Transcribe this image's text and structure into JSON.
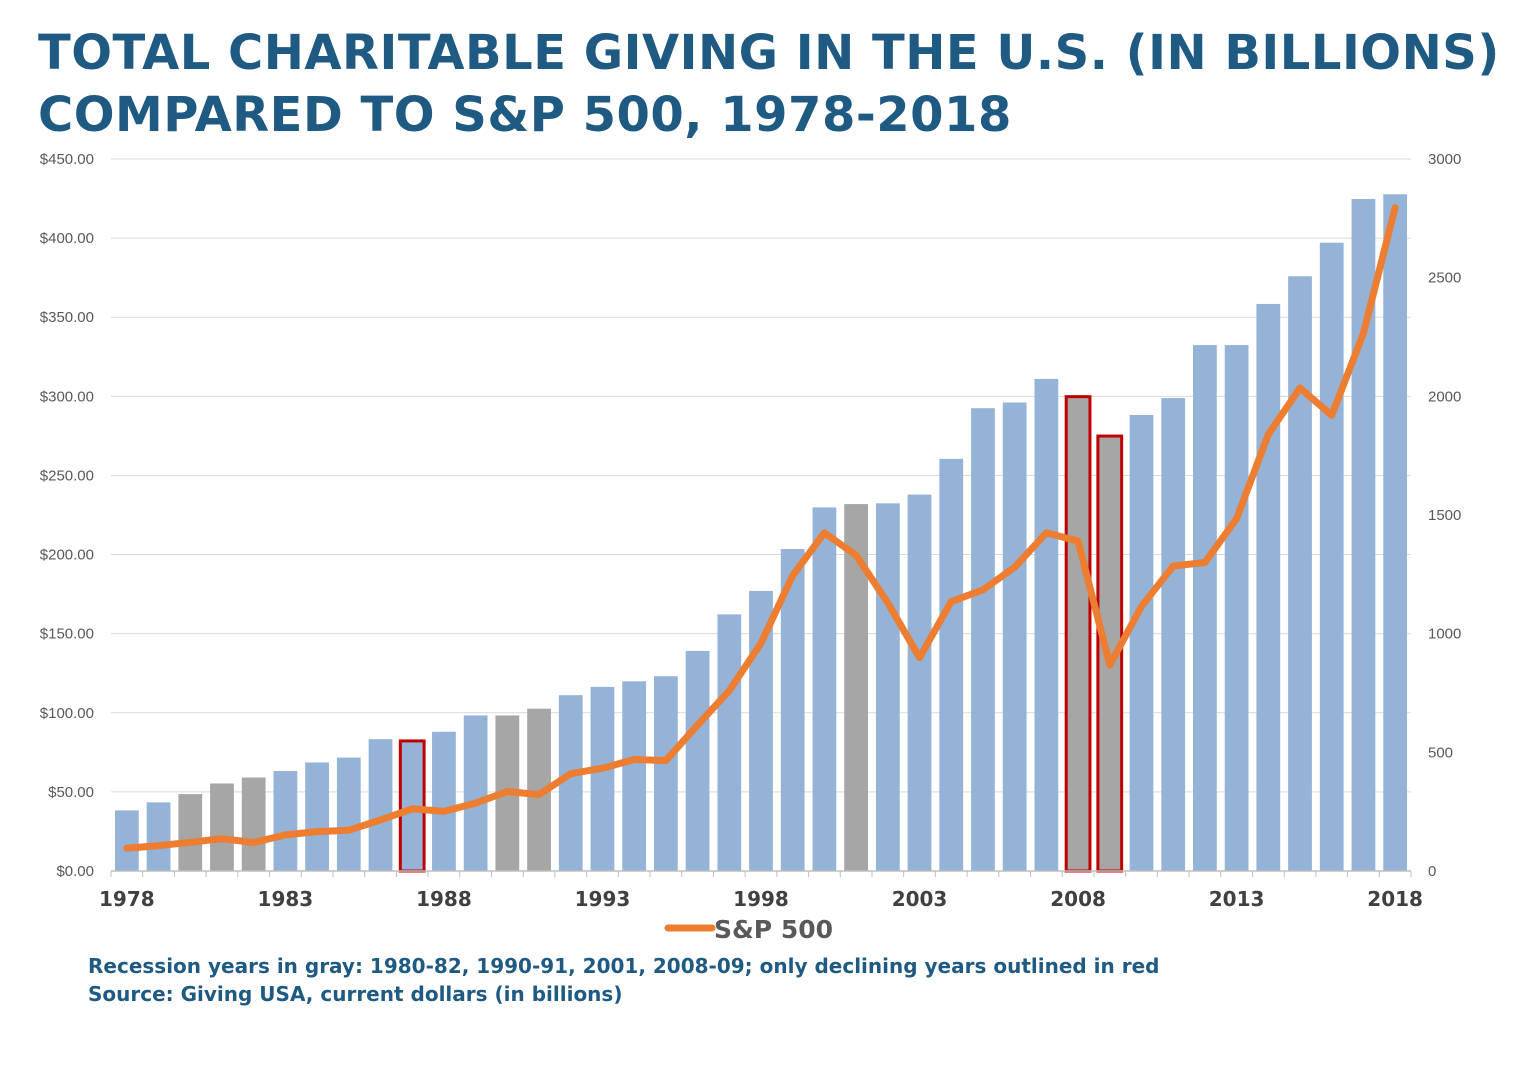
{
  "title": {
    "line1": "TOTAL CHARITABLE GIVING IN THE U.S. (IN BILLIONS)",
    "line2": "COMPARED TO S&P 500, 1978-2018"
  },
  "notes": {
    "recession": "Recession years in gray: 1980-82, 1990-91, 2001, 2008-09; only declining years outlined in red",
    "source": "Source: Giving USA, current dollars (in billions)"
  },
  "colors": {
    "bar": "#95b3d7",
    "recession_bar": "#a6a6a6",
    "decline_outline": "#c00000",
    "line": "#ed7d31",
    "title": "#1f5a82",
    "grid": "#d9d9d9"
  },
  "chart_data": {
    "type": "bar",
    "title": "TOTAL CHARITABLE GIVING IN THE U.S. (IN BILLIONS) COMPARED TO S&P 500, 1978-2018",
    "x": [
      1978,
      1979,
      1980,
      1981,
      1982,
      1983,
      1984,
      1985,
      1986,
      1987,
      1988,
      1989,
      1990,
      1991,
      1992,
      1993,
      1994,
      1995,
      1996,
      1997,
      1998,
      1999,
      2000,
      2001,
      2002,
      2003,
      2004,
      2005,
      2006,
      2007,
      2008,
      2009,
      2010,
      2011,
      2012,
      2013,
      2014,
      2015,
      2016,
      2017,
      2018
    ],
    "x_tick_labels": [
      "1978",
      "1983",
      "1988",
      "1993",
      "1998",
      "2003",
      "2008",
      "2013",
      "2018"
    ],
    "series": [
      {
        "type": "bar",
        "axis": "left",
        "values": [
          38.3,
          43.4,
          48.6,
          55.3,
          59.1,
          63.2,
          68.6,
          71.7,
          83.3,
          82.2,
          88.0,
          98.3,
          98.3,
          102.6,
          111.1,
          116.4,
          119.9,
          123.1,
          139.1,
          162.2,
          177.0,
          203.5,
          229.8,
          231.9,
          232.4,
          237.9,
          260.5,
          292.5,
          296.1,
          311.0,
          299.8,
          274.9,
          288.2,
          298.9,
          332.4,
          332.4,
          358.4,
          375.9,
          397.1,
          424.7,
          427.7
        ],
        "recession_years": [
          1980,
          1981,
          1982,
          1990,
          1991,
          2001,
          2008,
          2009
        ],
        "declining_years_outlined": [
          1987,
          2008,
          2009
        ]
      },
      {
        "type": "line",
        "axis": "right",
        "name": "S&P 500",
        "values": [
          96,
          107,
          121,
          136,
          120,
          152,
          166,
          172,
          215,
          262,
          251,
          286,
          335,
          322,
          410,
          433,
          470,
          465,
          615,
          760,
          960,
          1245,
          1425,
          1330,
          1130,
          899,
          1135,
          1185,
          1280,
          1425,
          1390,
          868,
          1115,
          1285,
          1300,
          1485,
          1840,
          2035,
          1920,
          2265,
          2795
        ]
      }
    ],
    "left_axis": {
      "ylim": [
        0,
        450
      ],
      "ticks": [
        "$0.00",
        "$50.00",
        "$100.00",
        "$150.00",
        "$200.00",
        "$250.00",
        "$300.00",
        "$350.00",
        "$400.00",
        "$450.00"
      ]
    },
    "right_axis": {
      "ylim": [
        0,
        3000
      ],
      "ticks": [
        "0",
        "500",
        "1000",
        "1500",
        "2000",
        "2500",
        "3000"
      ]
    },
    "grid": true,
    "legend": {
      "placement": "bottom",
      "entries": [
        "S&P 500"
      ]
    }
  }
}
